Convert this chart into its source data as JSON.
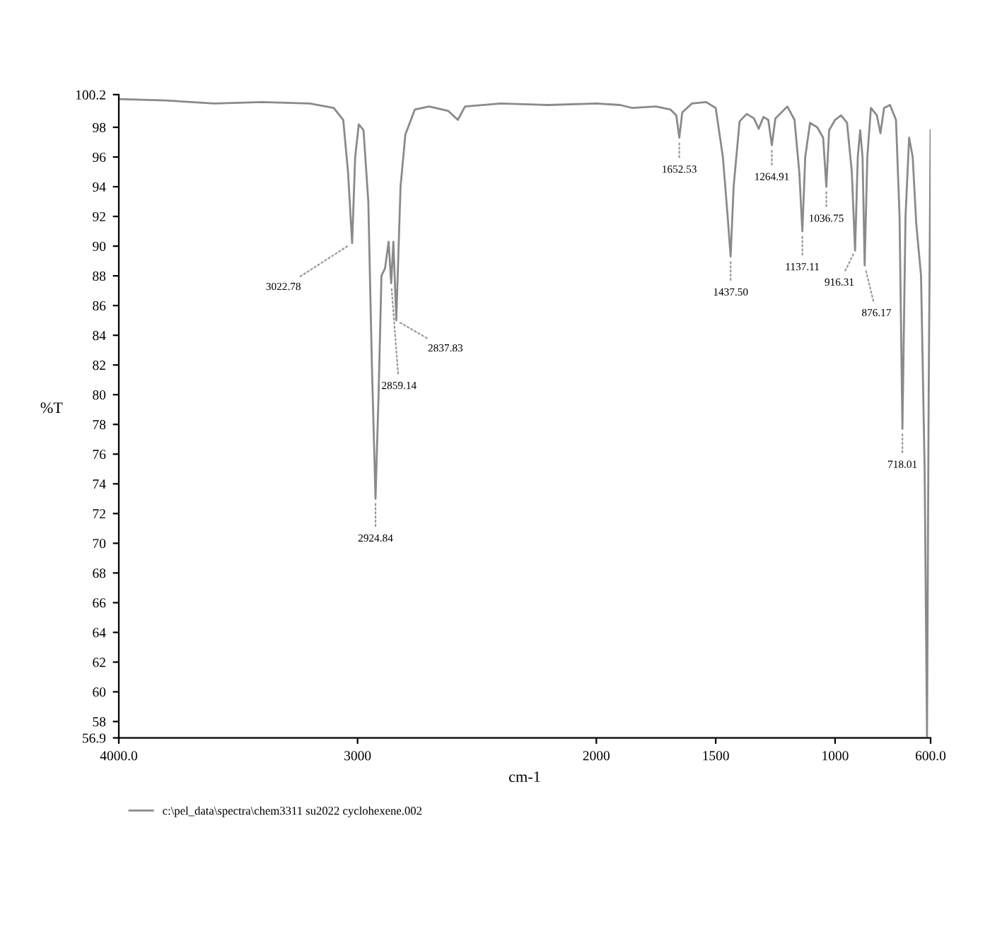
{
  "chart_data": {
    "type": "line",
    "xlabel": "cm-1",
    "ylabel": "%T",
    "xlim": [
      4000,
      600
    ],
    "ylim": [
      56.9,
      100.2
    ],
    "xticks": [
      {
        "value": 4000,
        "label": "4000.0"
      },
      3000,
      2000,
      1500,
      1000,
      {
        "value": 600,
        "label": "600.0"
      }
    ],
    "yticks": [
      56.9,
      58,
      60,
      62,
      64,
      66,
      68,
      70,
      72,
      74,
      76,
      78,
      80,
      82,
      84,
      86,
      88,
      90,
      92,
      94,
      96,
      98,
      100.2
    ],
    "grid": false,
    "legend": "bottom",
    "marker": "none",
    "line_style": "solid",
    "series": [
      {
        "name": "c:\\pel_data\\spectra\\chem3311 su2022 cyclohexene.002",
        "color": "#8a8a8a",
        "x": [
          4000,
          3800,
          3600,
          3400,
          3200,
          3100,
          3060,
          3040,
          3022.78,
          3010,
          2995,
          2975,
          2955,
          2940,
          2924.84,
          2912,
          2900,
          2885,
          2870,
          2859.14,
          2850,
          2837.83,
          2820,
          2800,
          2760,
          2700,
          2620,
          2580,
          2550,
          2400,
          2200,
          2000,
          1900,
          1850,
          1750,
          1690,
          1665,
          1652.53,
          1640,
          1600,
          1540,
          1500,
          1470,
          1450,
          1437.5,
          1425,
          1400,
          1370,
          1340,
          1320,
          1300,
          1280,
          1264.91,
          1250,
          1200,
          1170,
          1150,
          1137.11,
          1125,
          1105,
          1075,
          1050,
          1036.75,
          1025,
          1000,
          975,
          950,
          930,
          916.31,
          905,
          895,
          885,
          876.17,
          865,
          850,
          825,
          810,
          795,
          770,
          745,
          730,
          718.01,
          705,
          690,
          675,
          660,
          640,
          625,
          615,
          608,
          600
        ],
        "values": [
          99.9,
          99.8,
          99.6,
          99.7,
          99.6,
          99.3,
          98.5,
          95,
          90.2,
          96,
          98.2,
          97.8,
          93,
          82,
          73.0,
          80,
          88.0,
          88.5,
          90.3,
          87.5,
          90.3,
          85.0,
          94,
          97.5,
          99.2,
          99.4,
          99.1,
          98.5,
          99.4,
          99.6,
          99.5,
          99.6,
          99.5,
          99.3,
          99.4,
          99.2,
          98.8,
          97.3,
          99.0,
          99.6,
          99.7,
          99.3,
          96,
          92,
          89.3,
          94,
          98.4,
          98.9,
          98.6,
          97.9,
          98.7,
          98.5,
          96.8,
          98.6,
          99.4,
          98.5,
          95,
          91.0,
          96,
          98.3,
          98.0,
          97.3,
          94.0,
          97.8,
          98.5,
          98.8,
          98.3,
          95,
          89.7,
          96,
          97.8,
          96,
          88.7,
          96,
          99.3,
          98.8,
          97.6,
          99.3,
          99.5,
          98.5,
          92,
          77.7,
          92,
          97.3,
          96,
          91.5,
          88,
          75,
          57.0,
          80,
          97.8
        ]
      }
    ],
    "annotations": [
      {
        "text": "3022.78",
        "x": 3022.78,
        "y": 90.2
      },
      {
        "text": "2924.84",
        "x": 2924.84,
        "y": 73.0
      },
      {
        "text": "2859.14",
        "x": 2859.14,
        "y": 87.5
      },
      {
        "text": "2837.83",
        "x": 2837.83,
        "y": 85.0
      },
      {
        "text": "1652.53",
        "x": 1652.53,
        "y": 97.3
      },
      {
        "text": "1437.50",
        "x": 1437.5,
        "y": 89.3
      },
      {
        "text": "1264.91",
        "x": 1264.91,
        "y": 96.8
      },
      {
        "text": "1137.11",
        "x": 1137.11,
        "y": 91.0
      },
      {
        "text": "1036.75",
        "x": 1036.75,
        "y": 94.0
      },
      {
        "text": "916.31",
        "x": 916.31,
        "y": 89.7
      },
      {
        "text": "876.17",
        "x": 876.17,
        "y": 88.7
      },
      {
        "text": "718.01",
        "x": 718.01,
        "y": 77.7
      }
    ]
  }
}
